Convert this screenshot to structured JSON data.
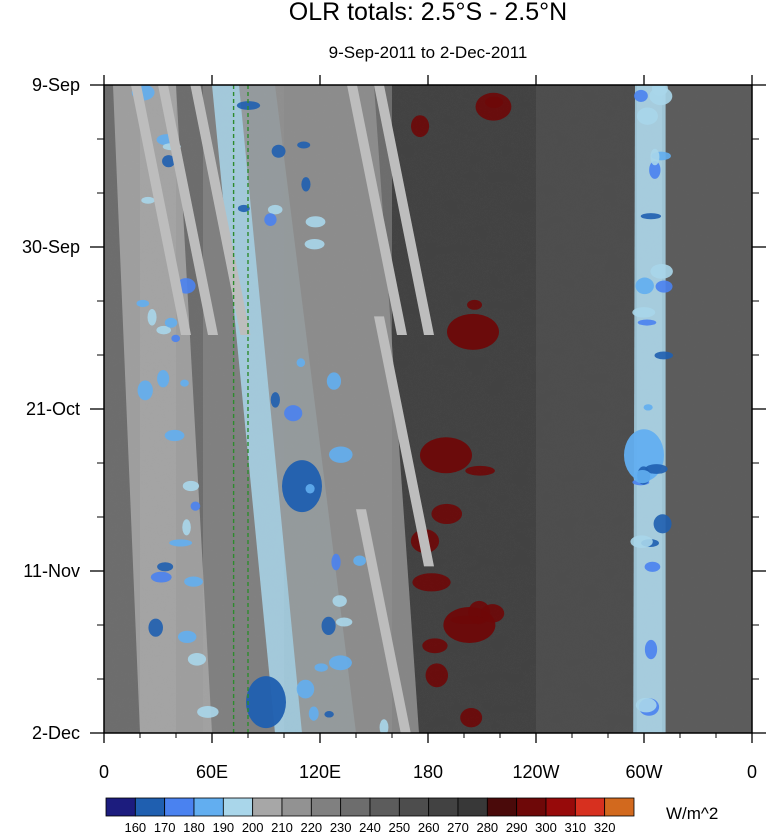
{
  "chart_data": {
    "type": "heatmap",
    "title": "OLR totals: 2.5°S - 2.5°N",
    "subtitle": "9-Sep-2011 to 2-Dec-2011",
    "xlabel": "",
    "ylabel": "",
    "x_ticks": [
      "0",
      "60E",
      "120E",
      "180",
      "120W",
      "60W",
      "0"
    ],
    "x_tick_values_deg": [
      0,
      60,
      120,
      180,
      240,
      300,
      360
    ],
    "xlim_deg": [
      0,
      360
    ],
    "y_ticks": [
      "9-Sep",
      "30-Sep",
      "21-Oct",
      "11-Nov",
      "2-Dec"
    ],
    "y_tick_day_offsets": [
      0,
      21,
      42,
      63,
      84
    ],
    "ylim_days": [
      0,
      84
    ],
    "y_axis_direction": "time increases downward",
    "colorbar": {
      "units": "W/m^2",
      "levels": [
        160,
        170,
        180,
        190,
        200,
        210,
        220,
        230,
        240,
        250,
        260,
        270,
        280,
        290,
        300,
        310,
        320
      ],
      "colors": [
        "#1c1c7e",
        "#1f5fb0",
        "#4a82f0",
        "#62aef0",
        "#a9d6ea",
        "#a7a7a7",
        "#929292",
        "#808080",
        "#6d6d6d",
        "#5c5c5c",
        "#4d4d4d",
        "#424242",
        "#383838",
        "#4a0a0a",
        "#6e0808",
        "#970a0a",
        "#d7301f",
        "#d2691e"
      ]
    },
    "reference_lines": {
      "style": "dashed green vertical lines",
      "color": "#2e8b2e",
      "longitudes_deg": [
        72,
        80
      ]
    },
    "missing_data_color": "#bdbdbd",
    "features": [
      {
        "kind": "convective",
        "lon_deg": 110,
        "day": 52,
        "value_wm2": 165
      },
      {
        "kind": "convective",
        "lon_deg": 90,
        "day": 80,
        "value_wm2": 160
      },
      {
        "kind": "convective",
        "lon_deg": 300,
        "day": 48,
        "value_wm2": 185
      },
      {
        "kind": "dry",
        "lon_deg": 190,
        "day": 48,
        "value_wm2": 295
      },
      {
        "kind": "dry",
        "lon_deg": 205,
        "day": 32,
        "value_wm2": 292
      },
      {
        "kind": "dry",
        "lon_deg": 203,
        "day": 70,
        "value_wm2": 292
      }
    ]
  }
}
